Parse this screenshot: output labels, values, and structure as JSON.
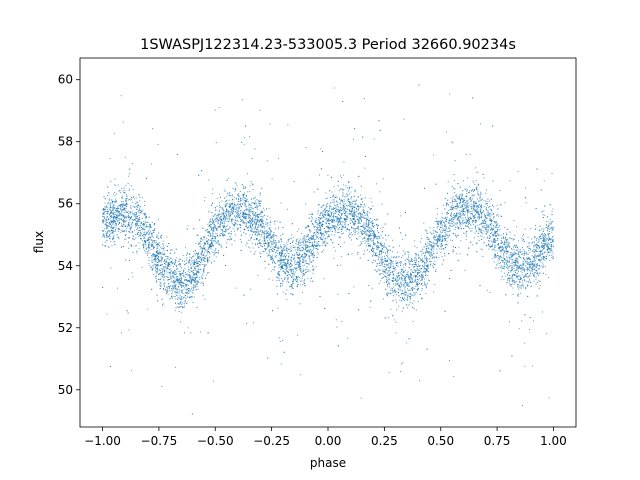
{
  "chart_data": {
    "type": "scatter",
    "title": "1SWASPJ122314.23-533005.3 Period 32660.90234s",
    "xlabel": "phase",
    "ylabel": "flux",
    "xlim": [
      -1.1,
      1.1
    ],
    "ylim": [
      48.8,
      60.7
    ],
    "xticks": [
      -1.0,
      -0.75,
      -0.5,
      -0.25,
      0.0,
      0.25,
      0.5,
      0.75,
      1.0
    ],
    "xtick_labels": [
      "−1.00",
      "−0.75",
      "−0.50",
      "−0.25",
      "0.00",
      "0.25",
      "0.50",
      "0.75",
      "1.00"
    ],
    "yticks": [
      50,
      52,
      54,
      56,
      58,
      60
    ],
    "ytick_labels": [
      "50",
      "52",
      "54",
      "56",
      "58",
      "60"
    ],
    "grid": false,
    "marker_color": "#1f77b4",
    "series": [
      {
        "phase": [
          -1.0,
          -0.95,
          -0.9,
          -0.85,
          -0.8,
          -0.75,
          -0.7,
          -0.65,
          -0.6,
          -0.55,
          -0.5,
          -0.45,
          -0.4,
          -0.35,
          -0.3,
          -0.25,
          -0.2,
          -0.15,
          -0.1,
          -0.05,
          0.0,
          0.05,
          0.1,
          0.15,
          0.2,
          0.25,
          0.3,
          0.35,
          0.4,
          0.45,
          0.5,
          0.55,
          0.6,
          0.65,
          0.7,
          0.75,
          0.8,
          0.85,
          0.9,
          0.95,
          1.0
        ],
        "flux_median": [
          55.3,
          55.6,
          55.7,
          55.5,
          54.9,
          54.2,
          53.7,
          53.4,
          53.7,
          54.4,
          55.1,
          55.6,
          55.8,
          55.7,
          55.3,
          54.6,
          54.1,
          54.0,
          54.4,
          55.0,
          55.4,
          55.6,
          55.7,
          55.4,
          54.9,
          54.2,
          53.6,
          53.5,
          53.7,
          54.3,
          55.0,
          55.5,
          55.7,
          55.8,
          55.4,
          54.8,
          54.2,
          53.9,
          54.1,
          54.6,
          55.0
        ]
      }
    ]
  }
}
